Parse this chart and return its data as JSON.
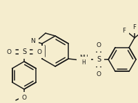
{
  "bg_color": "#f5edce",
  "line_color": "#1a1a1a",
  "line_width": 1.1,
  "figsize": [
    2.0,
    1.49
  ],
  "dpi": 100,
  "font_size": 5.5,
  "xlim": [
    0,
    200
  ],
  "ylim": [
    0,
    149
  ]
}
